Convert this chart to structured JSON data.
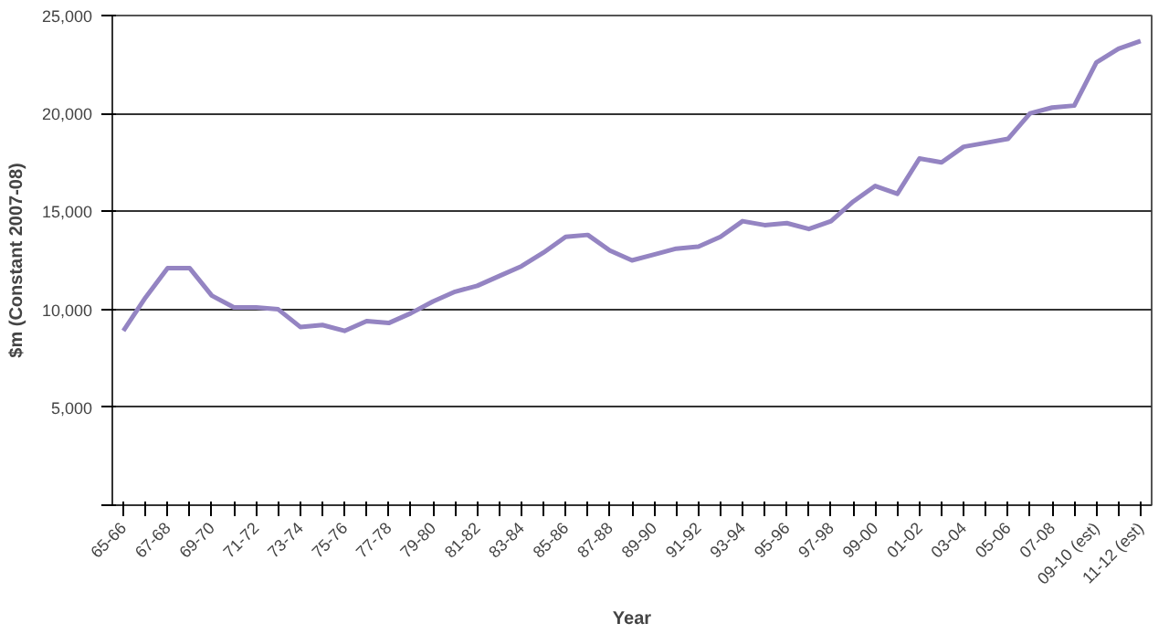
{
  "chart_data": {
    "type": "line",
    "xlabel": "Year",
    "ylabel": "$m (Constant 2007-08)",
    "categories": [
      "65-66",
      null,
      "67-68",
      null,
      "69-70",
      null,
      "71-72",
      null,
      "73-74",
      null,
      "75-76",
      null,
      "77-78",
      null,
      "79-80",
      null,
      "81-82",
      null,
      "83-84",
      null,
      "85-86",
      null,
      "87-88",
      null,
      "89-90",
      null,
      "91-92",
      null,
      "93-94",
      null,
      "95-96",
      null,
      "97-98",
      null,
      "99-00",
      null,
      "01-02",
      null,
      "03-04",
      null,
      "05-06",
      null,
      "07-08",
      null,
      "09-10 (est)",
      null,
      "11-12 (est)"
    ],
    "series": [
      {
        "color": "#9484c2",
        "values": [
          8900,
          10600,
          12100,
          12100,
          10700,
          10100,
          10100,
          10000,
          9100,
          9200,
          8900,
          9400,
          9300,
          9800,
          10400,
          10900,
          11200,
          11700,
          12200,
          12900,
          13700,
          13800,
          13000,
          12500,
          12800,
          13100,
          13200,
          13700,
          14500,
          14300,
          14400,
          14100,
          14500,
          15500,
          16300,
          15900,
          17700,
          17500,
          18300,
          18500,
          18700,
          20000,
          20300,
          20400,
          22600,
          23300,
          23700
        ]
      }
    ],
    "ylim": [
      0,
      25000
    ],
    "yticks": [
      {
        "value": 0,
        "label": null
      },
      {
        "value": 5000,
        "label": "5,000"
      },
      {
        "value": 10000,
        "label": "10,000"
      },
      {
        "value": 15000,
        "label": "15,000"
      },
      {
        "value": 20000,
        "label": "20,000"
      },
      {
        "value": 25000,
        "label": "25,000"
      }
    ],
    "grid": "y",
    "marker": "none",
    "line_style": "solid"
  }
}
